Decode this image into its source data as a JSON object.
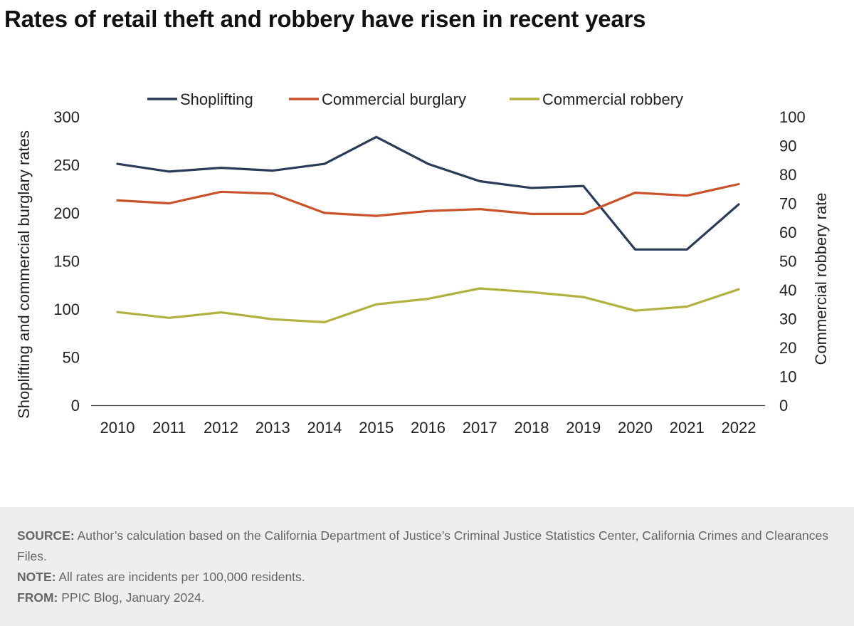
{
  "header": {
    "title": "Rates of retail theft and robbery have risen in recent years"
  },
  "chart_data": {
    "type": "line",
    "title": "Rates of retail theft and robbery have risen in recent years",
    "x": [
      "2010",
      "2011",
      "2012",
      "2013",
      "2014",
      "2015",
      "2016",
      "2017",
      "2018",
      "2019",
      "2020",
      "2021",
      "2022"
    ],
    "ylabel": "Shoplifting and commercial burglary rates",
    "ylim": [
      0,
      300
    ],
    "yticks": [
      "0",
      "50",
      "100",
      "150",
      "200",
      "250",
      "300"
    ],
    "y2label": "Commercial robbery rate",
    "y2lim": [
      0,
      100
    ],
    "y2ticks": [
      "0",
      "10",
      "20",
      "30",
      "40",
      "50",
      "60",
      "70",
      "80",
      "90",
      "100"
    ],
    "grid": false,
    "legend": "top",
    "series": [
      {
        "name": "Shoplifting",
        "axis": "left",
        "color": "#2a3b57",
        "values": [
          251,
          243,
          247,
          244,
          251,
          279,
          251,
          233,
          226,
          228,
          162,
          162,
          209
        ]
      },
      {
        "name": "Commercial burglary",
        "axis": "left",
        "color": "#c8522a",
        "values": [
          213,
          210,
          222,
          220,
          200,
          197,
          202,
          204,
          199,
          199,
          221,
          218,
          230
        ]
      },
      {
        "name": "Commercial robbery",
        "axis": "right",
        "color": "#b0b13f",
        "values": [
          32.3,
          30.3,
          32.2,
          29.8,
          28.8,
          35.0,
          36.9,
          40.5,
          39.2,
          37.5,
          32.8,
          34.2,
          40.2
        ]
      }
    ]
  },
  "footer": {
    "source_label": "SOURCE:",
    "source_text": " Author’s calculation based on the California Department of Justice’s Criminal Justice Statistics Center, California Crimes and Clearances Files.",
    "note_label": "NOTE:",
    "note_text": " All rates are incidents per 100,000 residents.",
    "from_label": "FROM:",
    "from_text": " PPIC Blog, January 2024."
  }
}
